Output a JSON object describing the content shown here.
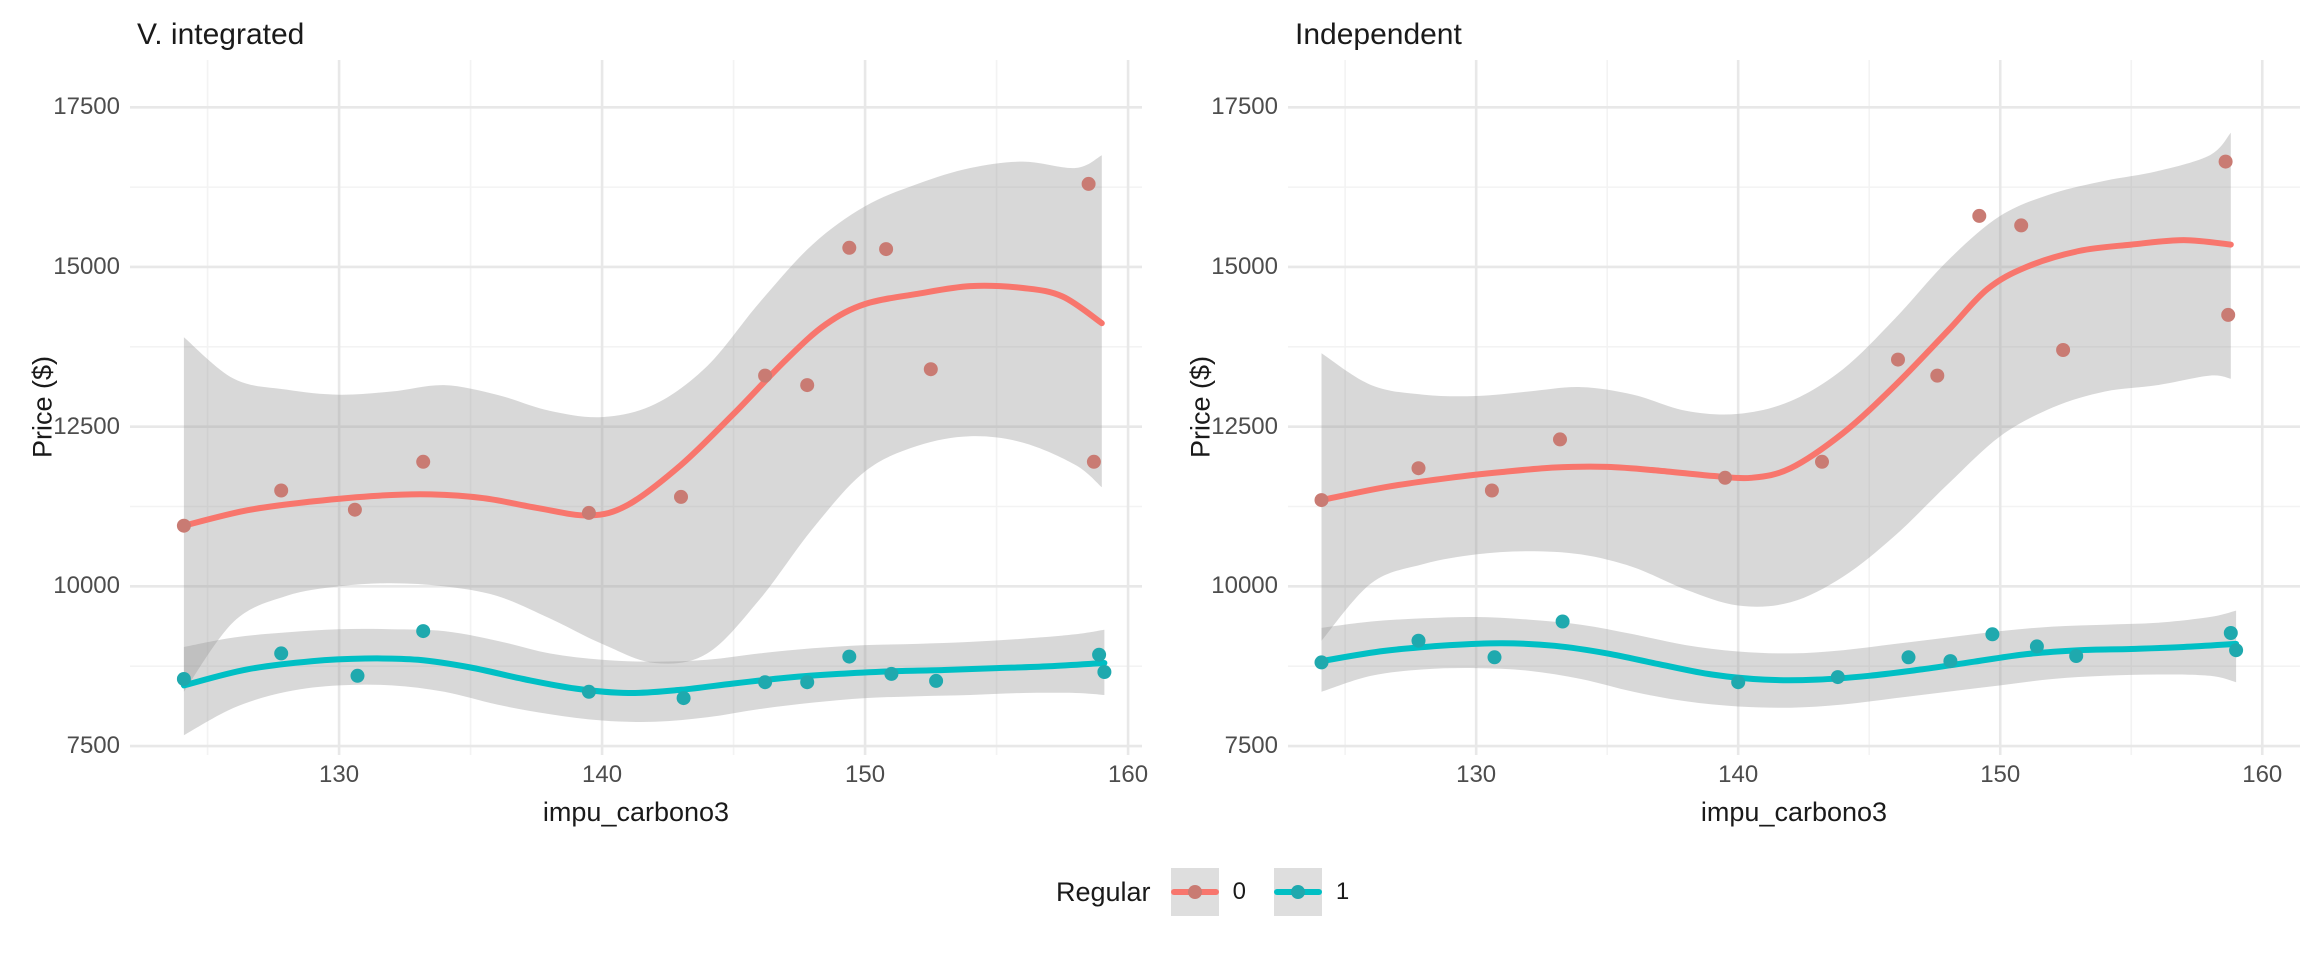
{
  "figure": {
    "background": "#FFFFFF"
  },
  "style": {
    "grid_major": "#E8E8E8",
    "grid_minor": "#F3F3F3",
    "band_fill": "rgba(153,153,153,0.38)",
    "tick_label_color": "#4D4D4D",
    "text_color": "#1A1A1A"
  },
  "legend": {
    "title": "Regular",
    "items": [
      {
        "label": "0",
        "line_color": "#F8766D",
        "dot_color": "#C97B73",
        "key_bg": "#DEDEDE"
      },
      {
        "label": "1",
        "line_color": "#00BFC4",
        "dot_color": "#1FA9AE",
        "key_bg": "#DEDEDE"
      }
    ]
  },
  "chart_data": [
    {
      "type": "scatter",
      "title": "V. integrated",
      "xlabel": "impu_carbono3",
      "ylabel": "Price ($)",
      "xlim": [
        122.05,
        160.53
      ],
      "ylim": [
        7360,
        18240
      ],
      "xticks": [
        130,
        140,
        150,
        160
      ],
      "xticks_minor": [
        125,
        135,
        145,
        155
      ],
      "yticks": [
        7500,
        10000,
        12500,
        15000,
        17500
      ],
      "yticks_minor": [
        8750,
        11250,
        13750,
        16250
      ],
      "series": [
        {
          "name": "0",
          "color": "#F8766D",
          "point_color": "#C97B73",
          "points": [
            [
              124.1,
              10950
            ],
            [
              127.8,
              11500
            ],
            [
              130.6,
              11200
            ],
            [
              133.2,
              11950
            ],
            [
              139.5,
              11150
            ],
            [
              143.0,
              11400
            ],
            [
              146.2,
              13300
            ],
            [
              147.8,
              13150
            ],
            [
              149.4,
              15300
            ],
            [
              150.8,
              15280
            ],
            [
              152.5,
              13400
            ],
            [
              158.5,
              16300
            ],
            [
              158.7,
              11950
            ]
          ],
          "smooth": [
            [
              124.1,
              10950
            ],
            [
              126.5,
              11190
            ],
            [
              129,
              11330
            ],
            [
              131.5,
              11420
            ],
            [
              133.5,
              11440
            ],
            [
              135.5,
              11380
            ],
            [
              137.5,
              11230
            ],
            [
              139.5,
              11110
            ],
            [
              141,
              11280
            ],
            [
              143,
              11900
            ],
            [
              145,
              12700
            ],
            [
              147,
              13550
            ],
            [
              148.5,
              14100
            ],
            [
              150,
              14420
            ],
            [
              152,
              14580
            ],
            [
              154,
              14700
            ],
            [
              156,
              14670
            ],
            [
              157.5,
              14540
            ],
            [
              159,
              14120
            ]
          ],
          "band": [
            [
              124.1,
              8350,
              13900
            ],
            [
              126,
              9450,
              13250
            ],
            [
              128,
              9850,
              13080
            ],
            [
              130,
              10000,
              13000
            ],
            [
              132,
              10050,
              13050
            ],
            [
              134,
              10000,
              13150
            ],
            [
              136,
              9850,
              13000
            ],
            [
              138,
              9500,
              12750
            ],
            [
              140,
              9100,
              12650
            ],
            [
              142,
              8800,
              12850
            ],
            [
              144,
              8950,
              13450
            ],
            [
              146,
              9800,
              14450
            ],
            [
              148,
              10900,
              15350
            ],
            [
              150,
              11800,
              15950
            ],
            [
              152,
              12200,
              16300
            ],
            [
              154,
              12350,
              16550
            ],
            [
              156,
              12250,
              16650
            ],
            [
              158,
              11900,
              16550
            ],
            [
              159,
              11550,
              16750
            ]
          ]
        },
        {
          "name": "1",
          "color": "#00BFC4",
          "point_color": "#1FA9AE",
          "points": [
            [
              124.1,
              8550
            ],
            [
              127.8,
              8950
            ],
            [
              130.7,
              8600
            ],
            [
              133.2,
              9300
            ],
            [
              139.5,
              8350
            ],
            [
              143.1,
              8250
            ],
            [
              146.2,
              8500
            ],
            [
              147.8,
              8500
            ],
            [
              149.4,
              8900
            ],
            [
              151.0,
              8630
            ],
            [
              152.7,
              8520
            ],
            [
              158.9,
              8930
            ],
            [
              159.1,
              8660
            ]
          ],
          "smooth": [
            [
              124.1,
              8450
            ],
            [
              126.5,
              8700
            ],
            [
              129,
              8830
            ],
            [
              131,
              8870
            ],
            [
              133,
              8850
            ],
            [
              135,
              8730
            ],
            [
              137,
              8550
            ],
            [
              139,
              8400
            ],
            [
              141,
              8330
            ],
            [
              143,
              8380
            ],
            [
              145,
              8480
            ],
            [
              147,
              8570
            ],
            [
              149,
              8630
            ],
            [
              151,
              8670
            ],
            [
              153,
              8690
            ],
            [
              155,
              8720
            ],
            [
              157,
              8750
            ],
            [
              159.1,
              8800
            ]
          ],
          "band": [
            [
              124.1,
              7670,
              9050
            ],
            [
              126,
              8100,
              9200
            ],
            [
              128,
              8350,
              9280
            ],
            [
              130,
              8450,
              9330
            ],
            [
              132,
              8450,
              9330
            ],
            [
              134,
              8350,
              9300
            ],
            [
              136,
              8150,
              9150
            ],
            [
              138,
              8000,
              8950
            ],
            [
              140,
              7900,
              8850
            ],
            [
              142,
              7880,
              8820
            ],
            [
              144,
              7950,
              8850
            ],
            [
              146,
              8080,
              8950
            ],
            [
              148,
              8180,
              9030
            ],
            [
              150,
              8250,
              9080
            ],
            [
              152,
              8280,
              9100
            ],
            [
              154,
              8300,
              9130
            ],
            [
              156,
              8330,
              9180
            ],
            [
              158,
              8330,
              9250
            ],
            [
              159.1,
              8300,
              9320
            ]
          ]
        }
      ]
    },
    {
      "type": "scatter",
      "title": "Independent",
      "xlabel": "impu_carbono3",
      "ylabel": "Price ($)",
      "xlim": [
        122.82,
        161.44
      ],
      "ylim": [
        7360,
        18240
      ],
      "xticks": [
        130,
        140,
        150,
        160
      ],
      "xticks_minor": [
        125,
        135,
        145,
        155
      ],
      "yticks": [
        7500,
        10000,
        12500,
        15000,
        17500
      ],
      "yticks_minor": [
        8750,
        11250,
        13750,
        16250
      ],
      "series": [
        {
          "name": "0",
          "color": "#F8766D",
          "point_color": "#C97B73",
          "points": [
            [
              124.1,
              11350
            ],
            [
              127.8,
              11850
            ],
            [
              130.6,
              11500
            ],
            [
              133.2,
              12300
            ],
            [
              139.5,
              11700
            ],
            [
              143.2,
              11950
            ],
            [
              146.1,
              13550
            ],
            [
              147.6,
              13300
            ],
            [
              149.2,
              15800
            ],
            [
              150.8,
              15650
            ],
            [
              152.4,
              13700
            ],
            [
              158.6,
              16650
            ],
            [
              158.7,
              14250
            ]
          ],
          "smooth": [
            [
              124.1,
              11350
            ],
            [
              126.5,
              11550
            ],
            [
              129,
              11700
            ],
            [
              131,
              11790
            ],
            [
              133,
              11860
            ],
            [
              135,
              11870
            ],
            [
              137,
              11810
            ],
            [
              139,
              11730
            ],
            [
              140.5,
              11700
            ],
            [
              142,
              11850
            ],
            [
              144,
              12400
            ],
            [
              146,
              13150
            ],
            [
              148,
              14000
            ],
            [
              149.5,
              14650
            ],
            [
              151,
              15000
            ],
            [
              153,
              15250
            ],
            [
              155,
              15350
            ],
            [
              157,
              15420
            ],
            [
              158.8,
              15350
            ]
          ],
          "band": [
            [
              124.1,
              9150,
              13650
            ],
            [
              126,
              10050,
              13150
            ],
            [
              128,
              10350,
              13000
            ],
            [
              130,
              10500,
              12980
            ],
            [
              132,
              10550,
              13050
            ],
            [
              134,
              10500,
              13120
            ],
            [
              136,
              10300,
              13000
            ],
            [
              138,
              9950,
              12750
            ],
            [
              140,
              9700,
              12700
            ],
            [
              142,
              9750,
              12900
            ],
            [
              144,
              10150,
              13400
            ],
            [
              146,
              10800,
              14200
            ],
            [
              148,
              11600,
              15100
            ],
            [
              150,
              12350,
              15800
            ],
            [
              152,
              12800,
              16150
            ],
            [
              154,
              13050,
              16350
            ],
            [
              156,
              13150,
              16500
            ],
            [
              158,
              13300,
              16750
            ],
            [
              158.8,
              13250,
              17100
            ]
          ]
        },
        {
          "name": "1",
          "color": "#00BFC4",
          "point_color": "#1FA9AE",
          "points": [
            [
              124.1,
              8810
            ],
            [
              127.8,
              9150
            ],
            [
              130.7,
              8890
            ],
            [
              133.3,
              9450
            ],
            [
              140.0,
              8500
            ],
            [
              143.8,
              8580
            ],
            [
              146.5,
              8890
            ],
            [
              148.1,
              8830
            ],
            [
              149.7,
              9250
            ],
            [
              151.4,
              9060
            ],
            [
              152.9,
              8910
            ],
            [
              158.8,
              9270
            ],
            [
              159.0,
              9000
            ]
          ],
          "smooth": [
            [
              124.1,
              8830
            ],
            [
              126.5,
              8990
            ],
            [
              129,
              9080
            ],
            [
              131,
              9110
            ],
            [
              133,
              9070
            ],
            [
              135,
              8950
            ],
            [
              137,
              8780
            ],
            [
              139,
              8620
            ],
            [
              141,
              8540
            ],
            [
              143,
              8540
            ],
            [
              145,
              8600
            ],
            [
              147,
              8700
            ],
            [
              149,
              8820
            ],
            [
              151,
              8940
            ],
            [
              153,
              9000
            ],
            [
              155,
              9020
            ],
            [
              157,
              9050
            ],
            [
              159,
              9100
            ]
          ],
          "band": [
            [
              124.1,
              8350,
              9350
            ],
            [
              126,
              8600,
              9450
            ],
            [
              128,
              8700,
              9500
            ],
            [
              130,
              8720,
              9520
            ],
            [
              132,
              8680,
              9480
            ],
            [
              134,
              8550,
              9400
            ],
            [
              136,
              8350,
              9250
            ],
            [
              138,
              8200,
              9080
            ],
            [
              140,
              8120,
              8980
            ],
            [
              142,
              8100,
              8950
            ],
            [
              144,
              8150,
              9000
            ],
            [
              146,
              8250,
              9100
            ],
            [
              148,
              8350,
              9200
            ],
            [
              150,
              8450,
              9300
            ],
            [
              152,
              8550,
              9370
            ],
            [
              154,
              8600,
              9400
            ],
            [
              156,
              8620,
              9430
            ],
            [
              158,
              8600,
              9520
            ],
            [
              159,
              8500,
              9620
            ]
          ]
        }
      ]
    }
  ]
}
